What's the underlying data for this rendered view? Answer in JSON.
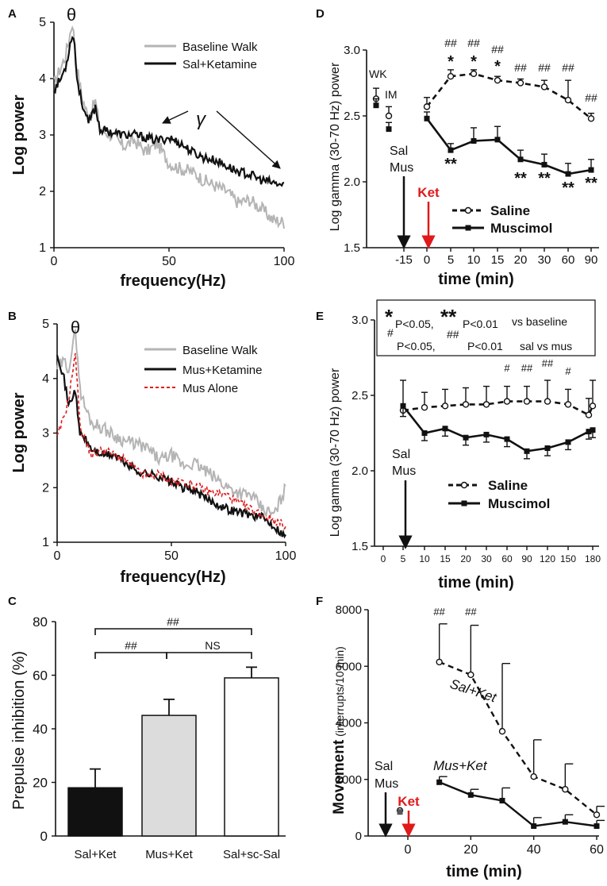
{
  "panels": {
    "A": {
      "letter": "A",
      "ylabel": "Log power",
      "xlabel": "frequency(Hz)",
      "xticks": [
        "0",
        "50",
        "100"
      ],
      "yticks": [
        "1",
        "2",
        "3",
        "4",
        "5"
      ],
      "theta": "θ",
      "gamma": "γ",
      "legend": [
        "Baseline Walk",
        "Sal+Ketamine"
      ]
    },
    "B": {
      "letter": "B",
      "ylabel": "Log power",
      "xlabel": "frequency(Hz)",
      "xticks": [
        "0",
        "50",
        "100"
      ],
      "yticks": [
        "1",
        "2",
        "3",
        "4",
        "5"
      ],
      "theta": "θ",
      "legend": [
        "Baseline Walk",
        "Mus+Ketamine",
        "Mus Alone"
      ]
    },
    "C": {
      "letter": "C",
      "ylabel": "Prepulse inhibition (%)",
      "yticks": [
        "0",
        "20",
        "40",
        "60",
        "80"
      ],
      "categories": [
        "Sal+Ket",
        "Mus+Ket",
        "Sal+sc-Sal"
      ],
      "sig": [
        "##",
        "##",
        "NS"
      ]
    },
    "D": {
      "letter": "D",
      "ylabel": "Log gamma (30-70 Hz) power",
      "xlabel": "time (min)",
      "xticks": [
        "-15",
        "0",
        "5",
        "10",
        "15",
        "20",
        "30",
        "60",
        "90"
      ],
      "yticks": [
        "1.5",
        "2.0",
        "2.5",
        "3.0"
      ],
      "wk": "WK",
      "im": "IM",
      "inject": [
        "Sal",
        "Mus"
      ],
      "ket": "Ket",
      "legend": [
        "Saline",
        "Muscimol"
      ],
      "hash_marks": [
        "##",
        "##",
        "##",
        "##",
        "##",
        "##",
        "##"
      ],
      "star_top": [
        "*",
        "*",
        "*"
      ],
      "star_bottom": [
        "**",
        "**",
        "**",
        "**",
        "**"
      ]
    },
    "E": {
      "letter": "E",
      "ylabel": "Log gamma (30-70 Hz) power",
      "xlabel": "time (min)",
      "xticks": [
        "0",
        "5",
        "10",
        "15",
        "20",
        "30",
        "60",
        "90",
        "120",
        "150",
        "180"
      ],
      "yticks": [
        "1.5",
        "2.0",
        "2.5",
        "3.0"
      ],
      "inject": [
        "Sal",
        "Mus"
      ],
      "legend": [
        "Saline",
        "Muscimol"
      ],
      "box": {
        "s1": "*",
        "p1": "P<0.05,",
        "s2": "**",
        "p2": "P<0.01",
        "vs1": "vs baseline",
        "h1": "#",
        "q1": "P<0.05,",
        "h2": "##",
        "q2": "P<0.01",
        "vs2": "sal vs mus"
      },
      "hash_marks": [
        "#",
        "##",
        "##",
        "#"
      ]
    },
    "F": {
      "letter": "F",
      "ylabel_main": "Movement",
      "ylabel_unit": "(interrupts/10 min)",
      "xlabel": "time (min)",
      "xticks": [
        "0",
        "20",
        "40",
        "60"
      ],
      "yticks": [
        "0",
        "2000",
        "4000",
        "6000",
        "8000"
      ],
      "inject": [
        "Sal",
        "Mus"
      ],
      "ket": "Ket",
      "series_labels": [
        "Sal+Ket",
        "Mus+Ket"
      ],
      "hash_marks": [
        "##",
        "##"
      ]
    }
  },
  "colors": {
    "baseline": "#b4b4b4",
    "black": "#111111",
    "red": "#e0191b"
  },
  "chart_data": [
    {
      "panel": "A",
      "type": "line",
      "xlabel": "frequency(Hz)",
      "ylabel": "Log power",
      "xlim": [
        0,
        100
      ],
      "ylim": [
        1,
        5
      ],
      "x": [
        0,
        3,
        5,
        7,
        8,
        9,
        10,
        12,
        15,
        18,
        20,
        25,
        30,
        35,
        40,
        45,
        50,
        55,
        60,
        65,
        70,
        75,
        80,
        85,
        90,
        95,
        100
      ],
      "series": [
        {
          "name": "Baseline Walk",
          "values": [
            3.9,
            4.2,
            4.4,
            4.8,
            5.0,
            4.6,
            4.2,
            3.7,
            3.3,
            3.6,
            3.1,
            3.0,
            2.8,
            2.9,
            2.7,
            2.85,
            2.5,
            2.4,
            2.35,
            2.2,
            2.1,
            2.0,
            1.8,
            1.85,
            1.7,
            1.5,
            1.45
          ]
        },
        {
          "name": "Sal+Ketamine",
          "values": [
            3.8,
            4.0,
            4.2,
            4.6,
            4.8,
            4.6,
            4.0,
            3.6,
            3.2,
            3.5,
            3.1,
            3.05,
            3.0,
            3.0,
            2.95,
            2.9,
            2.95,
            2.85,
            2.7,
            2.6,
            2.55,
            2.45,
            2.35,
            2.3,
            2.2,
            2.15,
            2.1
          ]
        }
      ]
    },
    {
      "panel": "B",
      "type": "line",
      "xlabel": "frequency(Hz)",
      "ylabel": "Log power",
      "xlim": [
        0,
        100
      ],
      "ylim": [
        1,
        5
      ],
      "x": [
        0,
        3,
        5,
        7,
        8,
        9,
        10,
        12,
        15,
        20,
        25,
        30,
        35,
        40,
        45,
        50,
        55,
        60,
        65,
        70,
        75,
        80,
        85,
        90,
        95,
        100
      ],
      "series": [
        {
          "name": "Baseline Walk",
          "values": [
            4.2,
            4.3,
            4.2,
            4.6,
            4.9,
            4.4,
            3.8,
            3.5,
            3.2,
            3.1,
            2.95,
            2.85,
            2.8,
            2.7,
            2.5,
            2.6,
            2.4,
            2.45,
            2.3,
            2.15,
            2.0,
            1.9,
            1.85,
            1.6,
            1.5,
            2.0
          ]
        },
        {
          "name": "Mus+Ketamine",
          "values": [
            4.5,
            4.0,
            3.5,
            3.7,
            3.8,
            3.3,
            3.0,
            2.9,
            2.7,
            2.6,
            2.6,
            2.45,
            2.3,
            2.25,
            2.2,
            2.1,
            2.0,
            1.95,
            1.8,
            1.7,
            1.6,
            1.55,
            1.5,
            1.45,
            1.3,
            1.1
          ]
        },
        {
          "name": "Mus Alone",
          "values": [
            2.9,
            3.3,
            3.6,
            4.2,
            4.4,
            3.9,
            3.1,
            2.9,
            2.6,
            2.7,
            2.6,
            2.5,
            2.3,
            2.2,
            2.25,
            2.1,
            2.1,
            2.05,
            1.95,
            1.9,
            1.85,
            1.7,
            1.6,
            1.5,
            1.4,
            1.3
          ]
        }
      ]
    },
    {
      "panel": "C",
      "type": "bar",
      "ylabel": "Prepulse inhibition (%)",
      "ylim": [
        0,
        80
      ],
      "categories": [
        "Sal+Ket",
        "Mus+Ket",
        "Sal+sc-Sal"
      ],
      "values": [
        18,
        45,
        59
      ],
      "errors": [
        7,
        6,
        4
      ]
    },
    {
      "panel": "D",
      "type": "line",
      "xlabel": "time (min)",
      "ylabel": "Log gamma (30-70 Hz) power",
      "ylim": [
        1.5,
        3.0
      ],
      "categories": [
        "WK",
        "IM",
        "0",
        "5",
        "10",
        "15",
        "20",
        "30",
        "60",
        "90"
      ],
      "series": [
        {
          "name": "Saline",
          "values": [
            2.63,
            2.5,
            2.57,
            2.8,
            2.82,
            2.77,
            2.75,
            2.72,
            2.62,
            2.48
          ],
          "errors": [
            0.08,
            0.07,
            0.07,
            0.05,
            0.03,
            0.03,
            0.03,
            0.05,
            0.15,
            0.04
          ]
        },
        {
          "name": "Muscimol",
          "values": [
            2.58,
            2.4,
            2.48,
            2.24,
            2.31,
            2.32,
            2.17,
            2.13,
            2.06,
            2.09
          ],
          "errors": [
            0.05,
            0.05,
            0.05,
            0.05,
            0.1,
            0.1,
            0.07,
            0.08,
            0.08,
            0.08
          ]
        }
      ]
    },
    {
      "panel": "E",
      "type": "line",
      "xlabel": "time (min)",
      "ylabel": "Log gamma (30-70 Hz) power",
      "ylim": [
        1.5,
        3.0
      ],
      "categories": [
        "0",
        "5",
        "10",
        "15",
        "20",
        "30",
        "60",
        "90",
        "120",
        "150",
        "180"
      ],
      "series": [
        {
          "name": "Saline",
          "values": [
            2.4,
            2.42,
            2.43,
            2.44,
            2.44,
            2.46,
            2.46,
            2.46,
            2.44,
            2.37,
            2.43
          ],
          "errors": [
            0.2,
            0.1,
            0.11,
            0.11,
            0.12,
            0.1,
            0.1,
            0.14,
            0.1,
            0.11,
            0.17
          ]
        },
        {
          "name": "Muscimol",
          "values": [
            2.43,
            2.25,
            2.28,
            2.22,
            2.24,
            2.21,
            2.13,
            2.15,
            2.19,
            2.26,
            2.27
          ],
          "errors": [
            0.07,
            0.05,
            0.05,
            0.05,
            0.05,
            0.05,
            0.05,
            0.05,
            0.05,
            0.05,
            0.05
          ]
        }
      ]
    },
    {
      "panel": "F",
      "type": "line",
      "xlabel": "time (min)",
      "ylabel": "Movement (interrupts/10 min)",
      "xlim": [
        -10,
        60
      ],
      "ylim": [
        0,
        8000
      ],
      "x": [
        10,
        20,
        30,
        40,
        50,
        60
      ],
      "series": [
        {
          "name": "Sal+Ket",
          "values": [
            6150,
            5700,
            3700,
            2100,
            1650,
            750
          ],
          "errors": [
            1350,
            1750,
            2400,
            1300,
            900,
            300
          ]
        },
        {
          "name": "Mus+Ket",
          "values": [
            1900,
            1450,
            1250,
            350,
            500,
            350
          ],
          "errors": [
            200,
            200,
            450,
            300,
            250,
            200
          ]
        }
      ],
      "baseline_points": [
        {
          "x": -0.5,
          "sal": 900,
          "mus": 850
        }
      ]
    }
  ]
}
